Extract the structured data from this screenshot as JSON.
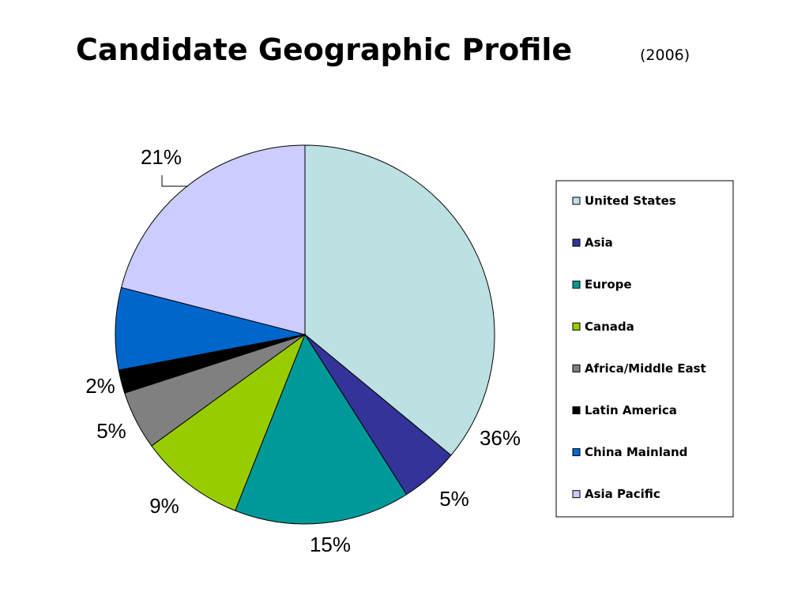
{
  "chart_data": {
    "type": "pie",
    "title": "Candidate Geographic Profile",
    "subtitle": "(2006)",
    "categories": [
      "United States",
      "Asia",
      "Europe",
      "Canada",
      "Africa/Middle East",
      "Latin America",
      "China Mainland",
      "Asia Pacific"
    ],
    "values": [
      36,
      5,
      15,
      9,
      5,
      2,
      7,
      21
    ],
    "value_labels": [
      "36%",
      "5%",
      "15%",
      "9%",
      "5%",
      "2%",
      null,
      "21%"
    ],
    "colors": [
      "#bde0e3",
      "#333399",
      "#009999",
      "#99cc00",
      "#808080",
      "#000000",
      "#0066cc",
      "#ccccff"
    ],
    "legend": "right"
  }
}
